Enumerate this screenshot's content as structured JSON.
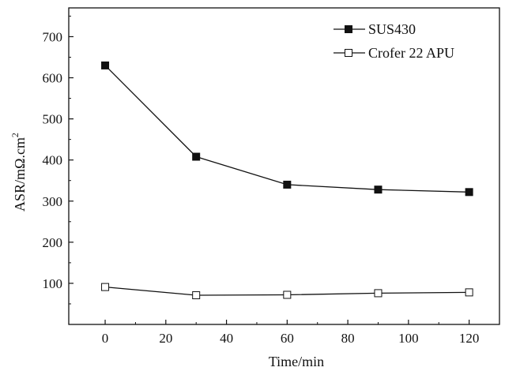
{
  "chart_data": {
    "type": "line",
    "xlabel": "Time/min",
    "ylabel": "ASR/mΩ.cm",
    "ylabel_superscript": "2",
    "xlim": [
      -12,
      130
    ],
    "ylim": [
      0,
      770
    ],
    "x_ticks": [
      0,
      20,
      40,
      60,
      80,
      100,
      120
    ],
    "y_ticks": [
      100,
      200,
      300,
      400,
      500,
      600,
      700
    ],
    "x_tick_labels": [
      "0",
      "20",
      "40",
      "60",
      "80",
      "100",
      "120"
    ],
    "y_tick_labels": [
      "100",
      "200",
      "300",
      "400",
      "500",
      "600",
      "700"
    ],
    "grid": false,
    "legend_position": "top-right",
    "x": [
      0,
      30,
      60,
      90,
      120
    ],
    "series": [
      {
        "name": "SUS430",
        "marker": "filled-square",
        "color": "#111111",
        "values": [
          630,
          408,
          340,
          328,
          322
        ]
      },
      {
        "name": "Crofer 22 APU",
        "marker": "open-square",
        "color": "#111111",
        "values": [
          91,
          71,
          72,
          76,
          78
        ]
      }
    ]
  }
}
